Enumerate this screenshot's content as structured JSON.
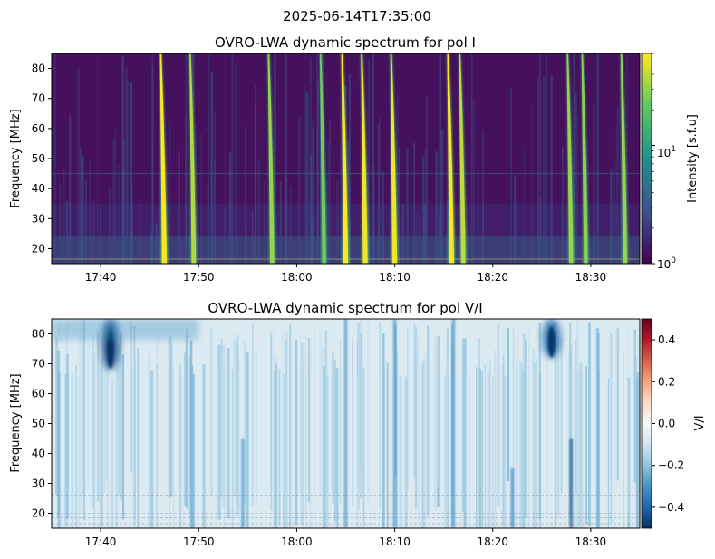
{
  "suptitle": "2025-06-14T17:35:00",
  "chart_data": [
    {
      "type": "heatmap",
      "title": "OVRO-LWA dynamic spectrum for pol I",
      "xlabel": "",
      "ylabel": "Frequency [MHz]",
      "xlim": [
        "17:35",
        "18:35"
      ],
      "ylim": [
        15,
        85
      ],
      "x_ticks": [
        "17:40",
        "17:50",
        "18:00",
        "18:10",
        "18:20",
        "18:30"
      ],
      "y_ticks": [
        20,
        30,
        40,
        50,
        60,
        70,
        80
      ],
      "colorbar": {
        "label": "Intensity [s.f.u]",
        "scale": "log",
        "range": [
          1,
          60
        ],
        "tick_labels": [
          "10^0",
          "10^1"
        ],
        "colormap": "viridis",
        "colors": [
          "#440154",
          "#3b528b",
          "#21918c",
          "#5ec962",
          "#fde725"
        ]
      },
      "background_level": "low",
      "bursts": [
        {
          "time": "17:46.5",
          "intensity": 1.0
        },
        {
          "time": "17:49.5",
          "intensity": 0.7
        },
        {
          "time": "17:57.5",
          "intensity": 0.6
        },
        {
          "time": "18:02.8",
          "intensity": 0.45
        },
        {
          "time": "18:05",
          "intensity": 1.0
        },
        {
          "time": "18:07",
          "intensity": 0.95
        },
        {
          "time": "18:10",
          "intensity": 0.95
        },
        {
          "time": "18:15.8",
          "intensity": 1.0
        },
        {
          "time": "18:17",
          "intensity": 0.75
        },
        {
          "time": "18:28",
          "intensity": 0.6
        },
        {
          "time": "18:29.5",
          "intensity": 0.55
        },
        {
          "time": "18:33.5",
          "intensity": 0.6
        }
      ]
    },
    {
      "type": "heatmap",
      "title": "OVRO-LWA dynamic spectrum for pol V/I",
      "xlabel": "",
      "ylabel": "Frequency [MHz]",
      "xlim": [
        "17:35",
        "18:35"
      ],
      "ylim": [
        15,
        85
      ],
      "x_ticks": [
        "17:40",
        "17:50",
        "18:00",
        "18:10",
        "18:20",
        "18:30"
      ],
      "y_ticks": [
        20,
        30,
        40,
        50,
        60,
        70,
        80
      ],
      "colorbar": {
        "label": "V/I",
        "scale": "linear",
        "range": [
          -0.5,
          0.5
        ],
        "tick_labels": [
          "0.4",
          "0.2",
          "0.0",
          "−0.2",
          "−0.4"
        ],
        "tick_values": [
          0.4,
          0.2,
          0.0,
          -0.2,
          -0.4
        ],
        "colormap": "RdBu_r",
        "colors": [
          "#053061",
          "#2166ac",
          "#4393c3",
          "#92c5de",
          "#d1e5f0",
          "#f7f7f7",
          "#fddbc7",
          "#f4a582",
          "#d6604d",
          "#b2182b",
          "#67001f"
        ]
      },
      "background_value": -0.12,
      "features": [
        {
          "time": "17:41",
          "freq_range": [
            68,
            85
          ],
          "value": -0.45
        },
        {
          "time": "18:26",
          "freq_range": [
            72,
            85
          ],
          "value": -0.4
        },
        {
          "time": "17:54.5",
          "freq_range": [
            15,
            45
          ],
          "value": -0.3
        },
        {
          "time": "18:05",
          "freq_range": [
            15,
            85
          ],
          "value": -0.3
        },
        {
          "time": "18:10",
          "freq_range": [
            15,
            85
          ],
          "value": -0.3
        },
        {
          "time": "18:16",
          "freq_range": [
            15,
            85
          ],
          "value": -0.3
        },
        {
          "time": "18:22",
          "freq_range": [
            15,
            35
          ],
          "value": -0.35
        },
        {
          "time": "18:28",
          "freq_range": [
            15,
            45
          ],
          "value": -0.45
        }
      ]
    }
  ]
}
